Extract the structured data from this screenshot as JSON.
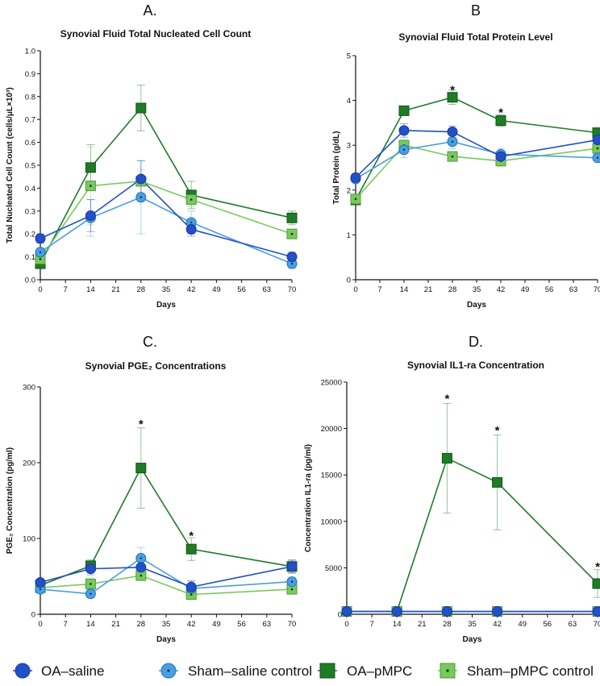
{
  "colors": {
    "oa_saline": "#2250c8",
    "sham_saline": "#4a9fe0",
    "oa_pmpc": "#1e7b26",
    "sham_pmpc": "#79c95e",
    "axis": "#111111"
  },
  "legend": [
    {
      "key": "oa_saline",
      "label": "OA–saline",
      "marker": "circle",
      "icon": "filled-circle-icon"
    },
    {
      "key": "sham_saline",
      "label": "Sham–saline control",
      "marker": "circle-dot",
      "icon": "dotted-circle-icon"
    },
    {
      "key": "oa_pmpc",
      "label": "OA–pMPC",
      "marker": "square",
      "icon": "filled-square-icon"
    },
    {
      "key": "sham_pmpc",
      "label": "Sham–pMPC control",
      "marker": "square-dot",
      "icon": "dotted-square-icon"
    }
  ],
  "chart_data": [
    {
      "id": "A",
      "panel_letter": "A.",
      "type": "line",
      "title": "Synovial Fluid Total Nucleated Cell Count",
      "xlabel": "Days",
      "ylabel": "Total Nucleated Cell Count (cells/μL×10³)",
      "x": [
        0,
        14,
        28,
        42,
        70
      ],
      "xticks": [
        0,
        7,
        14,
        21,
        28,
        35,
        42,
        49,
        56,
        63,
        70
      ],
      "xlim": [
        0,
        70
      ],
      "ylim": [
        0,
        1.0
      ],
      "yticks": [
        0.0,
        0.1,
        0.2,
        0.3,
        0.4,
        0.5,
        0.6,
        0.7,
        0.8,
        0.9,
        1.0
      ],
      "ytick_labels": [
        "0.0",
        "0.1",
        "0.2",
        "0.3",
        "0.4",
        "0.5",
        "0.6",
        "0.7",
        "0.8",
        "0.9",
        "1.0"
      ],
      "significance": [],
      "series": [
        {
          "key": "oa_saline",
          "name": "OA–saline",
          "values": [
            0.18,
            0.28,
            0.44,
            0.22,
            0.1
          ],
          "err": [
            0.02,
            0.07,
            0.08,
            0.03,
            0.02
          ]
        },
        {
          "key": "sham_saline",
          "name": "Sham–saline control",
          "values": [
            0.12,
            0.27,
            0.36,
            0.25,
            0.07
          ],
          "err": [
            0.02,
            0.08,
            0.16,
            0.05,
            0.02
          ]
        },
        {
          "key": "oa_pmpc",
          "name": "OA–pMPC",
          "values": [
            0.07,
            0.49,
            0.75,
            0.37,
            0.27
          ],
          "err": [
            0.02,
            0.1,
            0.1,
            0.06,
            0.03
          ]
        },
        {
          "key": "sham_pmpc",
          "name": "Sham–pMPC control",
          "values": [
            0.09,
            0.41,
            0.43,
            0.35,
            0.2
          ],
          "err": [
            0.02,
            0.17,
            0.05,
            0.03,
            0.02
          ]
        }
      ]
    },
    {
      "id": "B",
      "panel_letter": "B",
      "type": "line",
      "title": "Synovial Fluid Total Protein Level",
      "xlabel": "Days",
      "ylabel": "Total Protein (g/dL)",
      "x": [
        0,
        14,
        28,
        42,
        70
      ],
      "xticks": [
        0,
        7,
        14,
        21,
        28,
        35,
        42,
        49,
        56,
        63,
        70
      ],
      "xlim": [
        0,
        70
      ],
      "ylim": [
        0,
        5
      ],
      "yticks": [
        0,
        1,
        2,
        3,
        4,
        5
      ],
      "ytick_labels": [
        "0",
        "1",
        "2",
        "3",
        "4",
        "5"
      ],
      "significance": [
        {
          "x": 28,
          "y": 4.25,
          "label": "*"
        },
        {
          "x": 42,
          "y": 3.75,
          "label": "*"
        }
      ],
      "series": [
        {
          "key": "oa_saline",
          "name": "OA–saline",
          "values": [
            2.28,
            3.33,
            3.3,
            2.75,
            3.12
          ],
          "err": [
            0.05,
            0.15,
            0.13,
            0.1,
            0.08
          ]
        },
        {
          "key": "sham_saline",
          "name": "Sham–saline control",
          "values": [
            2.25,
            2.9,
            3.08,
            2.8,
            2.72
          ],
          "err": [
            0.05,
            0.18,
            0.16,
            0.12,
            0.07
          ]
        },
        {
          "key": "oa_pmpc",
          "name": "OA–pMPC",
          "values": [
            1.78,
            3.77,
            4.07,
            3.55,
            3.28
          ],
          "err": [
            0.07,
            0.1,
            0.16,
            0.13,
            0.07
          ]
        },
        {
          "key": "sham_pmpc",
          "name": "Sham–pMPC control",
          "values": [
            1.8,
            3.0,
            2.75,
            2.65,
            2.93
          ],
          "err": [
            0.05,
            0.13,
            0.1,
            0.13,
            0.09
          ]
        }
      ]
    },
    {
      "id": "C",
      "panel_letter": "C.",
      "type": "line",
      "title": "Synovial PGE₂ Concentrations",
      "xlabel": "Days",
      "ylabel": "PGE₂ Concentration (pg/ml)",
      "x": [
        0,
        14,
        28,
        42,
        70
      ],
      "xticks": [
        0,
        7,
        14,
        21,
        28,
        35,
        42,
        49,
        56,
        63,
        70
      ],
      "xlim": [
        0,
        70
      ],
      "ylim": [
        0,
        300
      ],
      "yticks": [
        0,
        100,
        200,
        300
      ],
      "ytick_labels": [
        "0",
        "100",
        "200",
        "300"
      ],
      "significance": [
        {
          "x": 28,
          "y": 252,
          "label": "*"
        },
        {
          "x": 42,
          "y": 105,
          "label": "*"
        }
      ],
      "series": [
        {
          "key": "oa_saline",
          "name": "OA–saline",
          "values": [
            42,
            60,
            62,
            36,
            63
          ],
          "err": [
            4,
            8,
            10,
            8,
            8
          ]
        },
        {
          "key": "sham_saline",
          "name": "Sham–saline control",
          "values": [
            33,
            27,
            74,
            34,
            43
          ],
          "err": [
            4,
            5,
            14,
            10,
            6
          ]
        },
        {
          "key": "oa_pmpc",
          "name": "OA–pMPC",
          "values": [
            38,
            64,
            193,
            86,
            63
          ],
          "err": [
            4,
            8,
            53,
            15,
            9
          ]
        },
        {
          "key": "sham_pmpc",
          "name": "Sham–pMPC control",
          "values": [
            35,
            40,
            51,
            26,
            33
          ],
          "err": [
            4,
            8,
            6,
            5,
            4
          ]
        }
      ]
    },
    {
      "id": "D",
      "panel_letter": "D.",
      "type": "line",
      "title": "Synovial IL1-ra Concentration",
      "xlabel": "Days",
      "ylabel": "Concentration IL1-ra (pg/ml)",
      "x": [
        0,
        14,
        28,
        42,
        70
      ],
      "xticks": [
        0,
        7,
        14,
        21,
        28,
        35,
        42,
        49,
        56,
        63,
        70
      ],
      "xlim": [
        0,
        70
      ],
      "ylim": [
        0,
        25000
      ],
      "yticks": [
        0,
        5000,
        10000,
        15000,
        20000,
        25000
      ],
      "ytick_labels": [
        "0",
        "5000",
        "10000",
        "15000",
        "20000",
        "25000"
      ],
      "significance": [
        {
          "x": 28,
          "y": 23300,
          "label": "*"
        },
        {
          "x": 42,
          "y": 19900,
          "label": "*"
        },
        {
          "x": 70,
          "y": 5200,
          "label": "*"
        }
      ],
      "series": [
        {
          "key": "oa_saline",
          "name": "OA–saline",
          "values": [
            300,
            300,
            300,
            300,
            300
          ],
          "err": [
            50,
            50,
            50,
            50,
            50
          ]
        },
        {
          "key": "sham_saline",
          "name": "Sham–saline control",
          "values": [
            300,
            300,
            300,
            300,
            300
          ],
          "err": [
            50,
            50,
            50,
            50,
            50
          ]
        },
        {
          "key": "oa_pmpc",
          "name": "OA–pMPC",
          "values": [
            300,
            300,
            16800,
            14200,
            3300
          ],
          "err": [
            50,
            50,
            5900,
            5100,
            1500
          ]
        },
        {
          "key": "sham_pmpc",
          "name": "Sham–pMPC control",
          "values": [
            300,
            300,
            300,
            300,
            300
          ],
          "err": [
            50,
            50,
            50,
            50,
            50
          ]
        }
      ]
    }
  ]
}
